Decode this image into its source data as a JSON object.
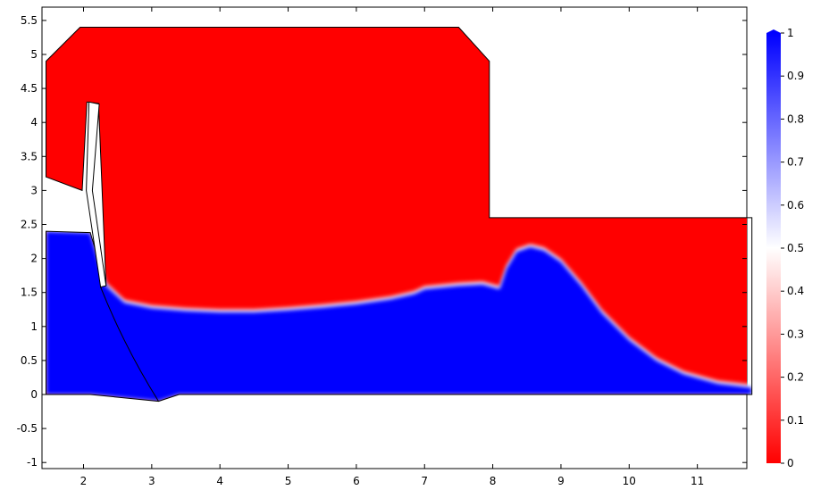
{
  "chart_data": {
    "type": "heatmap",
    "title": "",
    "xlabel": "",
    "ylabel": "",
    "xlim": [
      1.4,
      11.8
    ],
    "ylim": [
      -1.1,
      5.7
    ],
    "x_ticks": [
      "2",
      "3",
      "4",
      "5",
      "6",
      "7",
      "8",
      "9",
      "10",
      "11"
    ],
    "x_tick_values": [
      2,
      3,
      4,
      5,
      6,
      7,
      8,
      9,
      10,
      11
    ],
    "y_ticks": [
      "-1",
      "-0.5",
      "0",
      "0.5",
      "1",
      "1.5",
      "2",
      "2.5",
      "3",
      "3.5",
      "4",
      "4.5",
      "5",
      "5.5"
    ],
    "y_tick_values": [
      -1,
      -0.5,
      0,
      0.5,
      1,
      1.5,
      2,
      2.5,
      3,
      3.5,
      4,
      4.5,
      5,
      5.5
    ],
    "colorbar": {
      "range": [
        0,
        1
      ],
      "ticks": [
        "0",
        "0.1",
        "0.2",
        "0.3",
        "0.4",
        "0.5",
        "0.6",
        "0.7",
        "0.8",
        "0.9",
        "1"
      ],
      "tick_values": [
        0,
        0.1,
        0.2,
        0.3,
        0.4,
        0.5,
        0.6,
        0.7,
        0.8,
        0.9,
        1
      ],
      "color_low": "#ff0000",
      "color_mid": "#ffffff",
      "color_high": "#0000ff"
    },
    "domain_outline": [
      [
        1.45,
        4.9
      ],
      [
        1.95,
        5.4
      ],
      [
        7.5,
        5.4
      ],
      [
        7.95,
        4.9
      ],
      [
        7.95,
        2.6
      ],
      [
        11.8,
        2.6
      ],
      [
        11.8,
        0
      ],
      [
        3.4,
        0
      ],
      [
        3.1,
        -0.1
      ],
      [
        2.1,
        0
      ],
      [
        1.45,
        0
      ],
      [
        1.45,
        2.4
      ],
      [
        2.1,
        2.38
      ],
      [
        2.33,
        1.6
      ],
      [
        2.22,
        4.28
      ],
      [
        2.05,
        4.3
      ],
      [
        1.98,
        3.0
      ],
      [
        1.45,
        3.2
      ]
    ],
    "gate": [
      [
        2.08,
        4.3
      ],
      [
        2.23,
        4.27
      ],
      [
        2.13,
        3.0
      ],
      [
        2.33,
        1.6
      ],
      [
        2.25,
        1.58
      ],
      [
        2.04,
        3.0
      ]
    ],
    "water_surface": [
      [
        1.45,
        2.4
      ],
      [
        2.1,
        2.38
      ],
      [
        2.33,
        1.6
      ],
      [
        2.6,
        1.35
      ],
      [
        3.0,
        1.27
      ],
      [
        3.5,
        1.23
      ],
      [
        4.0,
        1.21
      ],
      [
        4.5,
        1.21
      ],
      [
        5.0,
        1.24
      ],
      [
        5.5,
        1.28
      ],
      [
        6.0,
        1.33
      ],
      [
        6.5,
        1.4
      ],
      [
        6.85,
        1.48
      ],
      [
        7.0,
        1.55
      ],
      [
        7.5,
        1.6
      ],
      [
        7.85,
        1.62
      ],
      [
        8.1,
        1.55
      ],
      [
        8.2,
        1.85
      ],
      [
        8.35,
        2.1
      ],
      [
        8.55,
        2.17
      ],
      [
        8.75,
        2.12
      ],
      [
        9.0,
        1.95
      ],
      [
        9.3,
        1.6
      ],
      [
        9.6,
        1.2
      ],
      [
        10.0,
        0.8
      ],
      [
        10.4,
        0.5
      ],
      [
        10.8,
        0.3
      ],
      [
        11.3,
        0.16
      ],
      [
        11.8,
        0.1
      ]
    ]
  }
}
